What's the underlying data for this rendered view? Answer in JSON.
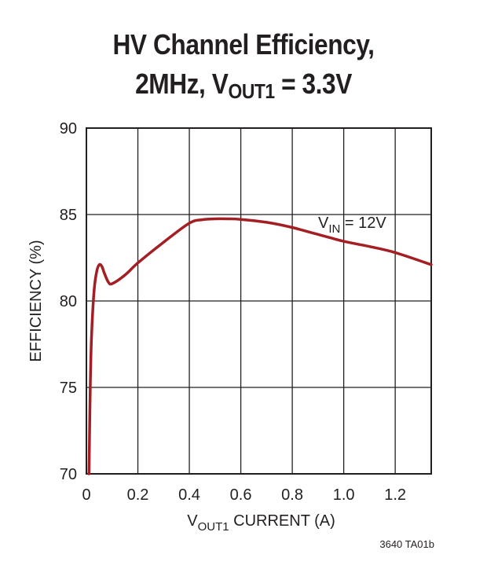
{
  "title": {
    "line1": "HV Channel Efficiency,",
    "line2_prefix": "2MHz, V",
    "line2_sub": "OUT1",
    "line2_suffix": " = 3.3V"
  },
  "footnote": "3640 TA01b",
  "chart_data": {
    "type": "line",
    "title": "HV Channel Efficiency, 2MHz, VOUT1 = 3.3V",
    "xlabel": {
      "main": "V",
      "sub": "OUT1",
      "rest": " CURRENT (A)"
    },
    "ylabel": "EFFICIENCY (%)",
    "xlim": [
      0,
      1.34
    ],
    "ylim": [
      70,
      90
    ],
    "x_ticks": [
      "0",
      "0.2",
      "0.4",
      "0.6",
      "0.8",
      "1.0",
      "1.2"
    ],
    "x_tick_values": [
      0,
      0.2,
      0.4,
      0.6,
      0.8,
      1.0,
      1.2
    ],
    "y_ticks": [
      "70",
      "75",
      "80",
      "85",
      "90"
    ],
    "y_tick_values": [
      70,
      75,
      80,
      85,
      90
    ],
    "x_grid": [
      0,
      0.2,
      0.4,
      0.6,
      0.8,
      1.0,
      1.2
    ],
    "y_grid": [
      75,
      80,
      85
    ],
    "grid": true,
    "line_color": "#a31f24",
    "series": [
      {
        "annotation": {
          "main": "V",
          "sub": "IN",
          "rest": " = 12V"
        },
        "x": [
          0.01,
          0.015,
          0.02,
          0.03,
          0.04,
          0.05,
          0.06,
          0.07,
          0.085,
          0.1,
          0.15,
          0.2,
          0.3,
          0.4,
          0.45,
          0.5,
          0.55,
          0.6,
          0.7,
          0.8,
          0.9,
          1.0,
          1.1,
          1.2,
          1.34
        ],
        "y": [
          70.0,
          75.0,
          78.0,
          80.6,
          81.7,
          82.1,
          82.0,
          81.6,
          81.1,
          81.0,
          81.5,
          82.2,
          83.4,
          84.5,
          84.7,
          84.75,
          84.75,
          84.72,
          84.55,
          84.25,
          83.85,
          83.45,
          83.15,
          82.8,
          82.1
        ]
      }
    ]
  }
}
